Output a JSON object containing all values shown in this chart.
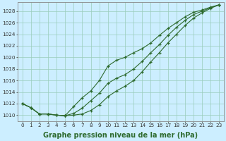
{
  "title": "Graphe pression niveau de la mer (hPa)",
  "x": [
    0,
    1,
    2,
    3,
    4,
    5,
    6,
    7,
    8,
    9,
    10,
    11,
    12,
    13,
    14,
    15,
    16,
    17,
    18,
    19,
    20,
    21,
    22,
    23
  ],
  "line1": [
    1012.0,
    1011.3,
    1010.2,
    1010.2,
    1010.0,
    1009.9,
    1010.0,
    1010.2,
    1010.8,
    1011.8,
    1013.2,
    1014.2,
    1015.0,
    1016.0,
    1017.5,
    1019.2,
    1020.8,
    1022.5,
    1024.0,
    1025.5,
    1026.8,
    1027.7,
    1028.5,
    1029.1
  ],
  "line2": [
    1012.0,
    1011.3,
    1010.2,
    1010.2,
    1010.0,
    1009.9,
    1010.3,
    1011.2,
    1012.5,
    1013.8,
    1015.5,
    1016.4,
    1017.0,
    1018.0,
    1019.3,
    1020.8,
    1022.2,
    1023.8,
    1025.2,
    1026.4,
    1027.4,
    1028.0,
    1028.6,
    1029.1
  ],
  "line3": [
    1012.0,
    1011.3,
    1010.2,
    1010.2,
    1010.0,
    1009.9,
    1011.5,
    1013.0,
    1014.2,
    1016.0,
    1018.5,
    1019.5,
    1020.0,
    1020.8,
    1021.5,
    1022.5,
    1023.8,
    1025.0,
    1026.0,
    1027.0,
    1027.8,
    1028.2,
    1028.7,
    1029.1
  ],
  "bg_color": "#cceeff",
  "grid_color": "#99ccbb",
  "line_color": "#2d6a2d",
  "marker": "+",
  "ylim": [
    1009.0,
    1029.5
  ],
  "yticks": [
    1010,
    1012,
    1014,
    1016,
    1018,
    1020,
    1022,
    1024,
    1026,
    1028
  ],
  "tick_fontsize": 5.2,
  "title_fontsize": 7.0
}
